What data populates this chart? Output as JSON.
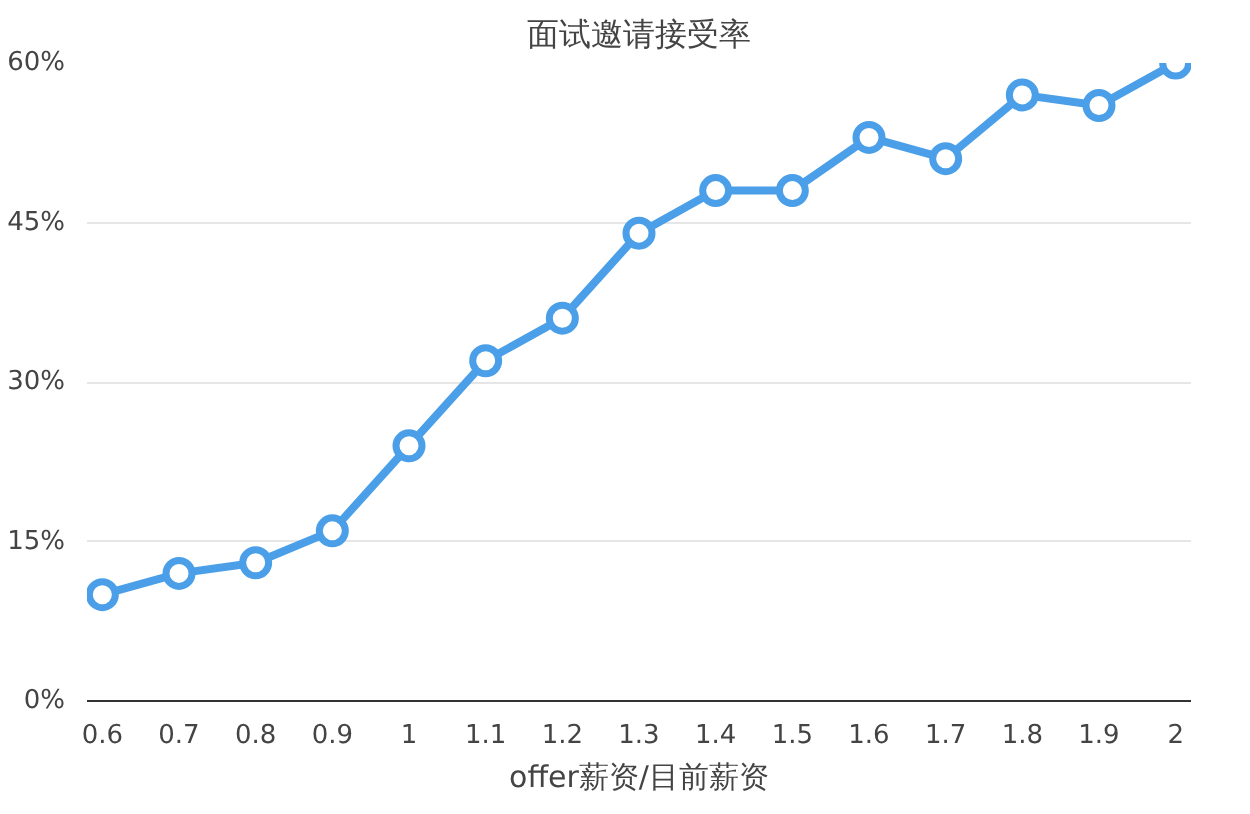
{
  "chart_data": {
    "type": "line",
    "title": "面试邀请接受率",
    "xlabel": "offer薪资/目前薪资",
    "x": [
      0.6,
      0.7,
      0.8,
      0.9,
      1,
      1.1,
      1.2,
      1.3,
      1.4,
      1.5,
      1.6,
      1.7,
      1.8,
      1.9,
      2
    ],
    "series": [
      {
        "color": "#4a9fe8",
        "values": [
          10,
          12,
          13,
          16,
          24,
          32,
          36,
          44,
          48,
          48,
          53,
          51,
          57,
          56,
          60
        ]
      }
    ],
    "xlim": [
      0.58,
      2.02
    ],
    "xticks": [
      0.6,
      0.7,
      0.8,
      0.9,
      1,
      1.1,
      1.2,
      1.3,
      1.4,
      1.5,
      1.6,
      1.7,
      1.8,
      1.9,
      2
    ],
    "ylim": [
      0,
      60
    ],
    "yticks": [
      {
        "value": 0,
        "label": "0%"
      },
      {
        "value": 15,
        "label": "15%"
      },
      {
        "value": 30,
        "label": "30%"
      },
      {
        "value": 45,
        "label": "45%"
      },
      {
        "value": 60,
        "label": "60%"
      }
    ],
    "grid": "y",
    "marker": "circle",
    "line_style": "solid"
  }
}
